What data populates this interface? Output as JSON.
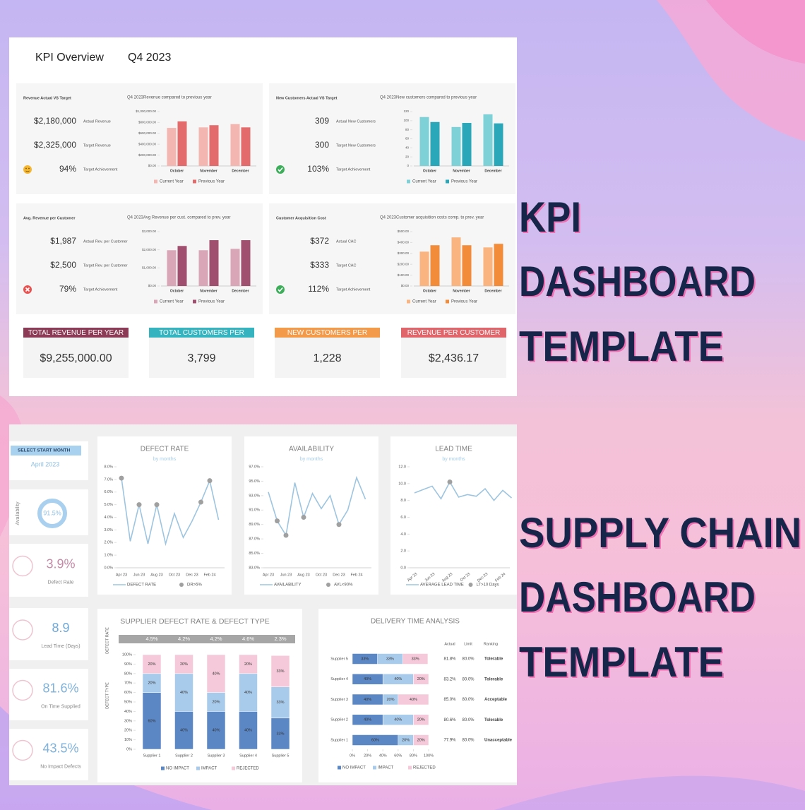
{
  "headline_kpi": [
    "KPI",
    "DASHBOARD",
    "TEMPLATE"
  ],
  "headline_supply": [
    "SUPPLY CHAIN",
    "DASHBOARD",
    "TEMPLATE"
  ],
  "kpi_dashboard": {
    "title": "KPI Overview",
    "period": "Q4 2023",
    "panels": [
      {
        "heading": "Revenue Actual VS Target",
        "icon": "warning",
        "rows": [
          {
            "value": "$2,180,000",
            "label": "Actual Revenue"
          },
          {
            "value": "$2,325,000",
            "label": "Target Revenue"
          },
          {
            "value": "94%",
            "label": "Target Achievement"
          }
        ],
        "chart_data": {
          "type": "bar",
          "title": "Q4 2023Revenue compared to previous year",
          "categories": [
            "October",
            "November",
            "December"
          ],
          "series": [
            {
              "name": "Current Year",
              "color": "#f4b6b0",
              "values": [
                700000,
                710000,
                770000
              ]
            },
            {
              "name": "Previous Year",
              "color": "#e36b6b",
              "values": [
                820000,
                750000,
                710000
              ]
            }
          ],
          "ylim": [
            0,
            1000000
          ],
          "yticks": [
            {
              "value": 0,
              "label": "$0.00"
            },
            {
              "value": 200000,
              "label": "$200,000.00"
            },
            {
              "value": 400000,
              "label": "$400,000.00"
            },
            {
              "value": 600000,
              "label": "$600,000.00"
            },
            {
              "value": 800000,
              "label": "$800,000.00"
            },
            {
              "value": 1000000,
              "label": "$1,000,000.00"
            }
          ]
        }
      },
      {
        "heading": "New Customers Actual VS Target",
        "icon": "check",
        "rows": [
          {
            "value": "309",
            "label": "Actual New Customers"
          },
          {
            "value": "300",
            "label": "Target New Customers"
          },
          {
            "value": "103%",
            "label": "Target Achievement"
          }
        ],
        "chart_data": {
          "type": "bar",
          "title": "Q4 2023New customers compared to previous year",
          "categories": [
            "October",
            "November",
            "December"
          ],
          "series": [
            {
              "name": "Current Year",
              "color": "#7fd1d8",
              "values": [
                108,
                86,
                114
              ]
            },
            {
              "name": "Previous Year",
              "color": "#2aa7b8",
              "values": [
                97,
                95,
                94
              ]
            }
          ],
          "ylim": [
            0,
            120
          ],
          "yticks": [
            0,
            20,
            40,
            60,
            80,
            100,
            120
          ]
        }
      },
      {
        "heading": "Avg. Revenue per Customer",
        "icon": "cross",
        "rows": [
          {
            "value": "$1,987",
            "label": "Actual Rev. per Customer"
          },
          {
            "value": "$2,500",
            "label": "Target Rev. per Customer"
          },
          {
            "value": "79%",
            "label": "Target Achievement"
          }
        ],
        "chart_data": {
          "type": "bar",
          "title": "Q4 2023Avg Revenue per cust. compared to prev. year",
          "categories": [
            "October",
            "November",
            "December"
          ],
          "series": [
            {
              "name": "Current Year",
              "color": "#d9a6b8",
              "values": [
                1975,
                1975,
                2050
              ]
            },
            {
              "name": "Previous Year",
              "color": "#a0506e",
              "values": [
                2210,
                2530,
                2530
              ]
            }
          ],
          "ylim": [
            0,
            3000
          ],
          "yticks": [
            {
              "value": 0,
              "label": "$0.00"
            },
            {
              "value": 1000,
              "label": "$1,000.00"
            },
            {
              "value": 2000,
              "label": "$2,000.00"
            },
            {
              "value": 3000,
              "label": "$3,000.00"
            }
          ]
        }
      },
      {
        "heading": "Customer Acquisition Cost",
        "icon": "check",
        "rows": [
          {
            "value": "$372",
            "label": "Actual CAC"
          },
          {
            "value": "$333",
            "label": "Target CAC"
          },
          {
            "value": "112%",
            "label": "Target Achievement"
          }
        ],
        "chart_data": {
          "type": "bar",
          "title": "Q4 2023Customer acquisition costs comp. to prev. year",
          "categories": [
            "October",
            "November",
            "December"
          ],
          "series": [
            {
              "name": "Current Year",
              "color": "#f9b47f",
              "values": [
                316,
                447,
                355
              ]
            },
            {
              "name": "Previous Year",
              "color": "#f28c3a",
              "values": [
                375,
                375,
                388
              ]
            }
          ],
          "ylim": [
            0,
            500
          ],
          "yticks": [
            {
              "value": 0,
              "label": "$0.00"
            },
            {
              "value": 100,
              "label": "$100.00"
            },
            {
              "value": 200,
              "label": "$200.00"
            },
            {
              "value": 300,
              "label": "$300.00"
            },
            {
              "value": 400,
              "label": "$400.00"
            },
            {
              "value": 500,
              "label": "$500.00"
            }
          ]
        }
      }
    ],
    "totals": [
      {
        "label": "TOTAL REVENUE PER YEAR",
        "value": "$9,255,000.00",
        "color": "#8b3b55"
      },
      {
        "label": "TOTAL CUSTOMERS PER",
        "value": "3,799",
        "color": "#35b3be"
      },
      {
        "label": "NEW CUSTOMERS PER",
        "value": "1,228",
        "color": "#f39a4a"
      },
      {
        "label": "REVENUE PER CUSTOMER",
        "value": "$2,436.17",
        "color": "#e0656a"
      }
    ]
  },
  "supply_chain": {
    "selector": {
      "label": "SELECT START MONTH",
      "value": "April 2023"
    },
    "kpis": [
      {
        "value": "91.5%",
        "label": "Availability",
        "color": "#8fc0e3"
      },
      {
        "value": "3.9%",
        "label": "Defect Rate",
        "color": "#c58aa6"
      },
      {
        "value": "8.9",
        "label": "Lead Time (Days)",
        "color": "#6fa8d8"
      },
      {
        "value": "81.6%",
        "label": "On Time Supplied",
        "color": "#7fb2dc"
      },
      {
        "value": "43.5%",
        "label": "No Impact Defects",
        "color": "#7fb2dc"
      }
    ],
    "trend_charts": [
      {
        "type": "line",
        "title": "DEFECT RATE",
        "subtitle": "by months",
        "categories": [
          "Apr 23",
          null,
          "Jun 23",
          null,
          "Aug 23",
          null,
          "Oct 23",
          null,
          "Dec 23",
          null,
          "Feb 24",
          null
        ],
        "series": [
          {
            "name": "DEFECT RATE",
            "color": "#9ec5e0",
            "values": [
              7.1,
              2.1,
              5.0,
              1.9,
              5.0,
              1.9,
              4.3,
              2.4,
              3.7,
              5.2,
              6.9,
              3.8
            ]
          },
          {
            "name": "DR>5%",
            "color": "#a0a0a0",
            "mode": "markers",
            "values": [
              7.1,
              null,
              5.0,
              null,
              5.0,
              null,
              null,
              null,
              null,
              5.2,
              6.9,
              null
            ]
          }
        ],
        "ylim": [
          0,
          8
        ],
        "yticks": [
          {
            "value": 0,
            "label": "0.0%"
          },
          {
            "value": 1,
            "label": "1.0%"
          },
          {
            "value": 2,
            "label": "2.0%"
          },
          {
            "value": 3,
            "label": "3.0%"
          },
          {
            "value": 4,
            "label": "4.0%"
          },
          {
            "value": 5,
            "label": "5.0%"
          },
          {
            "value": 6,
            "label": "6.0%"
          },
          {
            "value": 7,
            "label": "7.0%"
          },
          {
            "value": 8,
            "label": "8.0%"
          }
        ]
      },
      {
        "type": "line",
        "title": "AVAILABILITY",
        "subtitle": "by months",
        "categories": [
          "Apr 23",
          null,
          "Jun 23",
          null,
          "Aug 23",
          null,
          "Oct 23",
          null,
          "Dec 23",
          null,
          "Feb 24",
          null
        ],
        "series": [
          {
            "name": "AVAILABILITY",
            "color": "#9ec5e0",
            "values": [
              93.5,
              89.5,
              87.5,
              94.8,
              90.0,
              93.3,
              91.2,
              93.0,
              89.0,
              91.0,
              95.5,
              92.5
            ]
          },
          {
            "name": "AVL<90%",
            "color": "#a0a0a0",
            "mode": "markers",
            "values": [
              null,
              89.5,
              87.5,
              null,
              90.0,
              null,
              null,
              null,
              89.0,
              null,
              null,
              null
            ]
          }
        ],
        "ylim": [
          83,
          97
        ],
        "yticks": [
          {
            "value": 83,
            "label": "83.0%"
          },
          {
            "value": 85,
            "label": "85.0%"
          },
          {
            "value": 87,
            "label": "87.0%"
          },
          {
            "value": 89,
            "label": "89.0%"
          },
          {
            "value": 91,
            "label": "91.0%"
          },
          {
            "value": 93,
            "label": "93.0%"
          },
          {
            "value": 95,
            "label": "95.0%"
          },
          {
            "value": 97,
            "label": "97.0%"
          }
        ]
      },
      {
        "type": "line",
        "title": "LEAD TIME",
        "subtitle": "by months",
        "rotate_labels": true,
        "categories": [
          "Apr 23",
          null,
          "Jun 23",
          null,
          "Aug 23",
          null,
          "Oct 23",
          null,
          "Dec 23",
          null,
          "Feb 24",
          null
        ],
        "series": [
          {
            "name": "AVERAGE LEAD TIME",
            "color": "#9ec5e0",
            "values": [
              8.9,
              9.3,
              9.7,
              8.2,
              10.2,
              8.4,
              8.7,
              8.5,
              9.4,
              8.0,
              9.2,
              8.3
            ]
          },
          {
            "name": "LT>10 Days",
            "color": "#a0a0a0",
            "mode": "markers",
            "values": [
              null,
              null,
              null,
              null,
              10.2,
              null,
              null,
              null,
              null,
              null,
              null,
              null
            ]
          }
        ],
        "ylim": [
          0,
          12
        ],
        "yticks": [
          {
            "value": 0,
            "label": "0.0"
          },
          {
            "value": 2,
            "label": "2.0"
          },
          {
            "value": 4,
            "label": "4.0"
          },
          {
            "value": 6,
            "label": "6.0"
          },
          {
            "value": 8,
            "label": "8.0"
          },
          {
            "value": 10,
            "label": "10.0"
          },
          {
            "value": 12,
            "label": "12.0"
          }
        ]
      }
    ],
    "supplier_chart": {
      "type": "stacked_bar",
      "title": "SUPPLIER DEFECT RATE & DEFECT TYPE",
      "top_label": "DEFECT RATE",
      "ylabel": "DEFECT TYPE",
      "defect_rates": [
        "4.5%",
        "4.2%",
        "4.2%",
        "4.6%",
        "2.3%"
      ],
      "categories": [
        "Supplier 1",
        "Supplier 2",
        "Supplier 3",
        "Supplier 4",
        "Supplier 5"
      ],
      "series": [
        {
          "name": "NO IMPACT",
          "color": "#5b87c5",
          "values": [
            60,
            40,
            40,
            40,
            33
          ],
          "value_labels": [
            "60%",
            "40%",
            "40%",
            "40%",
            "33%"
          ]
        },
        {
          "name": "IMPACT",
          "color": "#a9cbeb",
          "values": [
            20,
            40,
            20,
            40,
            33
          ],
          "value_labels": [
            "20%",
            "40%",
            "20%",
            "40%",
            "33%"
          ]
        },
        {
          "name": "REJECTED",
          "color": "#f5c9d9",
          "values": [
            20,
            20,
            40,
            20,
            33
          ],
          "value_labels": [
            "20%",
            "20%",
            "40%",
            "20%",
            "33%"
          ]
        }
      ],
      "ylim": [
        0,
        100
      ],
      "yticks": [
        {
          "value": 0,
          "label": "0%"
        },
        {
          "value": 10,
          "label": "10%"
        },
        {
          "value": 20,
          "label": "20%"
        },
        {
          "value": 30,
          "label": "30%"
        },
        {
          "value": 40,
          "label": "40%"
        },
        {
          "value": 50,
          "label": "50%"
        },
        {
          "value": 60,
          "label": "60%"
        },
        {
          "value": 70,
          "label": "70%"
        },
        {
          "value": 80,
          "label": "80%"
        },
        {
          "value": 90,
          "label": "90%"
        },
        {
          "value": 100,
          "label": "100%"
        }
      ]
    },
    "delivery_chart": {
      "type": "hbar_stacked",
      "title": "DELIVERY TIME ANALYSIS",
      "categories": [
        "Supplier 5",
        "Supplier 4",
        "Supplier 3",
        "Supplier 2",
        "Supplier 1"
      ],
      "series": [
        {
          "name": "NO IMPACT",
          "color": "#5b87c5",
          "values": [
            33,
            40,
            40,
            40,
            60
          ],
          "value_labels": [
            "33%",
            "40%",
            "40%",
            "40%",
            "60%"
          ]
        },
        {
          "name": "IMPACT",
          "color": "#a9cbeb",
          "values": [
            33,
            40,
            20,
            40,
            20
          ],
          "value_labels": [
            "33%",
            "40%",
            "20%",
            "40%",
            "20%"
          ]
        },
        {
          "name": "REJECTED",
          "color": "#f5c9d9",
          "values": [
            33,
            20,
            40,
            20,
            20
          ],
          "value_labels": [
            "33%",
            "20%",
            "40%",
            "20%",
            "20%"
          ]
        }
      ],
      "xlim": [
        0,
        100
      ],
      "xticks": [
        {
          "value": 0,
          "label": "0%"
        },
        {
          "value": 20,
          "label": "20%"
        },
        {
          "value": 40,
          "label": "40%"
        },
        {
          "value": 60,
          "label": "60%"
        },
        {
          "value": 80,
          "label": "80%"
        },
        {
          "value": 100,
          "label": "100%"
        }
      ],
      "table": {
        "columns": [
          "Actual",
          "Limit",
          "Ranking"
        ],
        "rows": [
          [
            "81.8%",
            "80.0%",
            "Tolerable"
          ],
          [
            "83.2%",
            "80.0%",
            "Tolerable"
          ],
          [
            "85.0%",
            "80.0%",
            "Acceptable"
          ],
          [
            "80.6%",
            "80.0%",
            "Tolerable"
          ],
          [
            "77.9%",
            "80.0%",
            "Unacceptable"
          ]
        ]
      }
    }
  }
}
